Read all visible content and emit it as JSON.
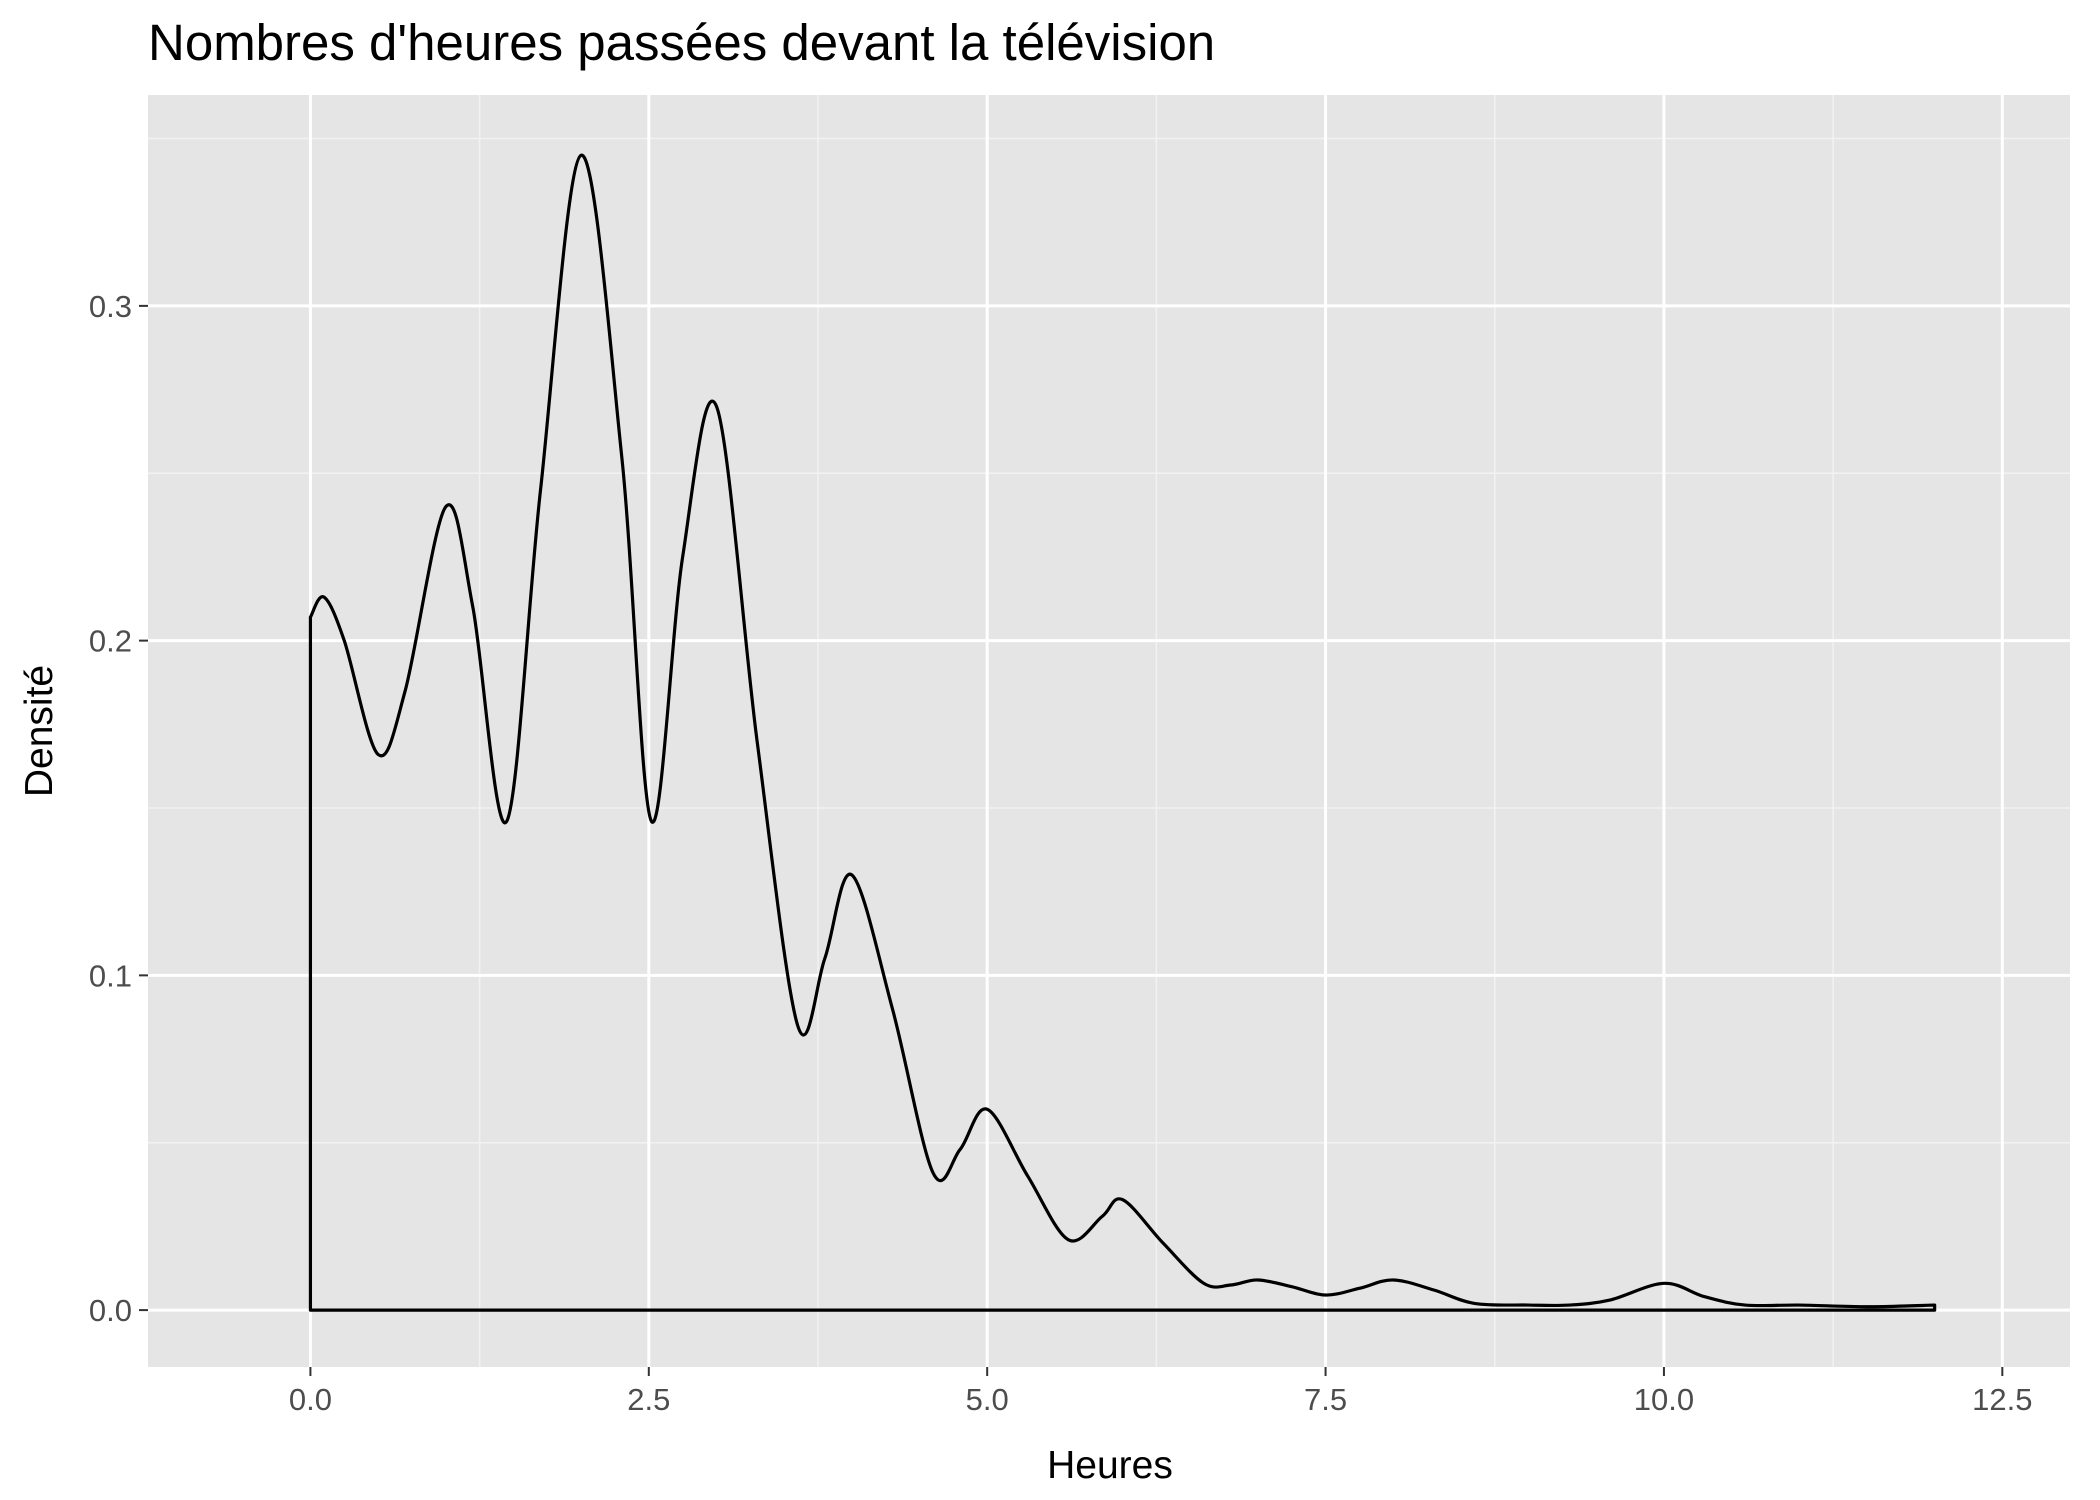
{
  "chart_data": {
    "type": "area",
    "title": "Nombres d'heures passées devant la télévision",
    "xlabel": "Heures",
    "ylabel": "Densité",
    "xlim": [
      -1.2,
      13.0
    ],
    "ylim": [
      -0.017,
      0.363
    ],
    "grid": true,
    "background": "#e5e5e5",
    "line_color": "#000000",
    "x_ticks": [
      {
        "value": 0,
        "label": "0.0"
      },
      {
        "value": 2.5,
        "label": "2.5"
      },
      {
        "value": 5,
        "label": "5.0"
      },
      {
        "value": 7.5,
        "label": "7.5"
      },
      {
        "value": 10,
        "label": "10.0"
      },
      {
        "value": 12.5,
        "label": "12.5"
      }
    ],
    "y_ticks": [
      {
        "value": 0,
        "label": "0.0"
      },
      {
        "value": 0.1,
        "label": "0.1"
      },
      {
        "value": 0.2,
        "label": "0.2"
      },
      {
        "value": 0.3,
        "label": "0.3"
      }
    ],
    "series": [
      {
        "x": [
          0,
          0.1,
          0.25,
          0.5,
          0.7,
          1.0,
          1.2,
          1.45,
          1.7,
          2.0,
          2.3,
          2.52,
          2.75,
          3.0,
          3.3,
          3.6,
          3.8,
          4.0,
          4.3,
          4.6,
          4.8,
          5.0,
          5.3,
          5.6,
          5.85,
          6.0,
          6.3,
          6.6,
          6.8,
          7.0,
          7.25,
          7.5,
          7.75,
          8.0,
          8.3,
          8.6,
          9.0,
          9.3,
          9.6,
          10.0,
          10.3,
          10.6,
          11.0,
          11.5,
          12.0
        ],
        "y": [
          0.207,
          0.213,
          0.2,
          0.166,
          0.185,
          0.24,
          0.21,
          0.146,
          0.245,
          0.345,
          0.255,
          0.146,
          0.225,
          0.27,
          0.17,
          0.085,
          0.105,
          0.13,
          0.09,
          0.041,
          0.048,
          0.06,
          0.04,
          0.021,
          0.028,
          0.033,
          0.02,
          0.008,
          0.0075,
          0.009,
          0.007,
          0.0045,
          0.0065,
          0.009,
          0.006,
          0.002,
          0.0015,
          0.0015,
          0.003,
          0.008,
          0.004,
          0.0015,
          0.0015,
          0.001,
          0.0015
        ]
      }
    ]
  }
}
